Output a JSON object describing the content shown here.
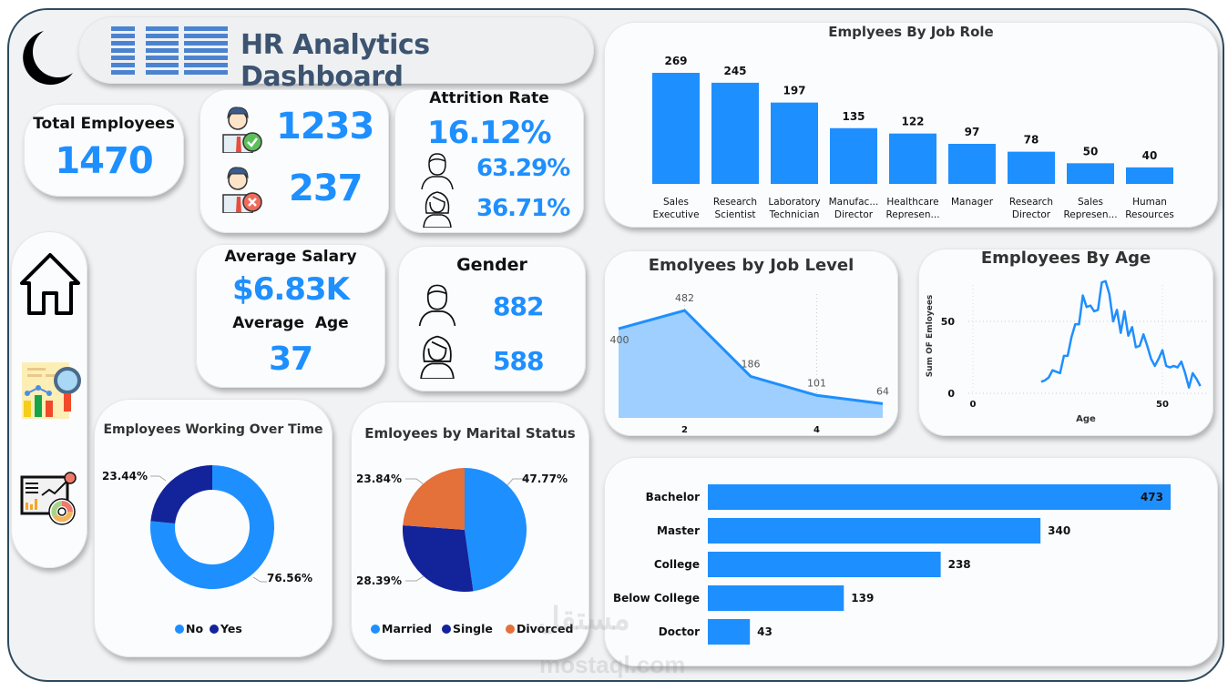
{
  "header": {
    "logo_text": "IBM",
    "title": "HR Analytics Dashboard",
    "theme_icon": "moon-icon"
  },
  "colors": {
    "accent": "#1e8fff",
    "dark_blue": "#13239a",
    "orange": "#e4703a",
    "frame": "#2e4a5e",
    "logo": "#4b83d0",
    "title": "#3d5470"
  },
  "sidebar": {
    "items": [
      {
        "name": "home",
        "icon": "home-icon"
      },
      {
        "name": "analysis-report",
        "icon": "report-magnifier-icon"
      },
      {
        "name": "analytics-dashboard",
        "icon": "dashboard-chart-icon"
      }
    ]
  },
  "kpis": {
    "total_employees": {
      "label": "Total Employees",
      "value": "1470"
    },
    "active": {
      "value": "1233",
      "icon": "employee-check-icon"
    },
    "attrited": {
      "value": "237",
      "icon": "employee-cross-icon"
    },
    "attrition": {
      "label": "Attrition Rate",
      "value": "16.12%",
      "male_pct": "63.29%",
      "female_pct": "36.71%"
    },
    "salary": {
      "label": "Average Salary",
      "value": "$6.83K"
    },
    "age": {
      "label": "Average  Age",
      "value": "37"
    },
    "gender": {
      "label": "Gender",
      "male": "882",
      "female": "588"
    }
  },
  "chart_data": [
    {
      "id": "job_role",
      "type": "bar",
      "title": "Emplyees By Job Role",
      "categories": [
        [
          "Sales",
          "Executive"
        ],
        [
          "Research",
          "Scientist"
        ],
        [
          "Laboratory",
          "Technician"
        ],
        [
          "Manufac...",
          "Director"
        ],
        [
          "Healthcare",
          "Represen..."
        ],
        [
          "Manager",
          ""
        ],
        [
          "Research",
          "Director"
        ],
        [
          "Sales",
          "Represen..."
        ],
        [
          "Human",
          "Resources"
        ]
      ],
      "values": [
        269,
        245,
        197,
        135,
        122,
        97,
        78,
        50,
        40
      ],
      "ylim": [
        0,
        269
      ],
      "grid": false
    },
    {
      "id": "job_level",
      "type": "area",
      "title": "Emolyees by Job Level",
      "x": [
        1,
        2,
        3,
        4,
        5
      ],
      "values": [
        400,
        482,
        186,
        101,
        64
      ],
      "xticks": [
        "2",
        "4"
      ],
      "xlim": [
        1,
        5
      ],
      "ylim": [
        0,
        482
      ]
    },
    {
      "id": "age",
      "type": "line",
      "title": "Employees By Age",
      "xlabel": "Age",
      "ylabel": "Sum OF Emloyees",
      "x": [
        18,
        19,
        20,
        21,
        22,
        23,
        24,
        25,
        26,
        27,
        28,
        29,
        30,
        31,
        32,
        33,
        34,
        35,
        36,
        37,
        38,
        39,
        40,
        41,
        42,
        43,
        44,
        45,
        46,
        47,
        48,
        49,
        50,
        51,
        52,
        53,
        54,
        55,
        56,
        57,
        58,
        59,
        60
      ],
      "values": [
        8,
        9,
        11,
        16,
        15,
        14,
        26,
        26,
        39,
        48,
        48,
        68,
        60,
        61,
        57,
        58,
        77,
        78,
        69,
        50,
        58,
        42,
        57,
        40,
        46,
        32,
        33,
        41,
        33,
        24,
        19,
        24,
        30,
        19,
        18,
        19,
        18,
        22,
        14,
        4,
        14,
        10,
        5
      ],
      "xticks": [
        "0",
        "50"
      ],
      "yticks": [
        "0",
        "50"
      ],
      "xlim": [
        0,
        60
      ],
      "ylim": [
        0,
        80
      ]
    },
    {
      "id": "overtime",
      "type": "pie",
      "title": "Employees Working Over Time",
      "donut": true,
      "labels": [
        "No",
        "Yes"
      ],
      "values": [
        76.56,
        23.44
      ],
      "value_labels": [
        "76.56%",
        "23.44%"
      ],
      "colors": [
        "#1e8fff",
        "#13239a"
      ],
      "legend": "bottom"
    },
    {
      "id": "marital",
      "type": "pie",
      "title": "Emloyees by Marital Status",
      "donut": false,
      "labels": [
        "Married",
        "Single",
        "Divorced"
      ],
      "values": [
        47.77,
        28.39,
        23.84
      ],
      "value_labels": [
        "47.77%",
        "28.39%",
        "23.84%"
      ],
      "colors": [
        "#1e8fff",
        "#13239a",
        "#e4703a"
      ],
      "legend": "bottom"
    },
    {
      "id": "education",
      "type": "bar",
      "orientation": "horizontal",
      "title": "",
      "categories": [
        "Bachelor",
        "Master",
        "College",
        "Below College",
        "Doctor"
      ],
      "values": [
        473,
        340,
        238,
        139,
        43
      ],
      "xlim": [
        0,
        473
      ]
    }
  ],
  "watermark": {
    "arabic": "مستقل",
    "latin": "mostaql.com"
  }
}
